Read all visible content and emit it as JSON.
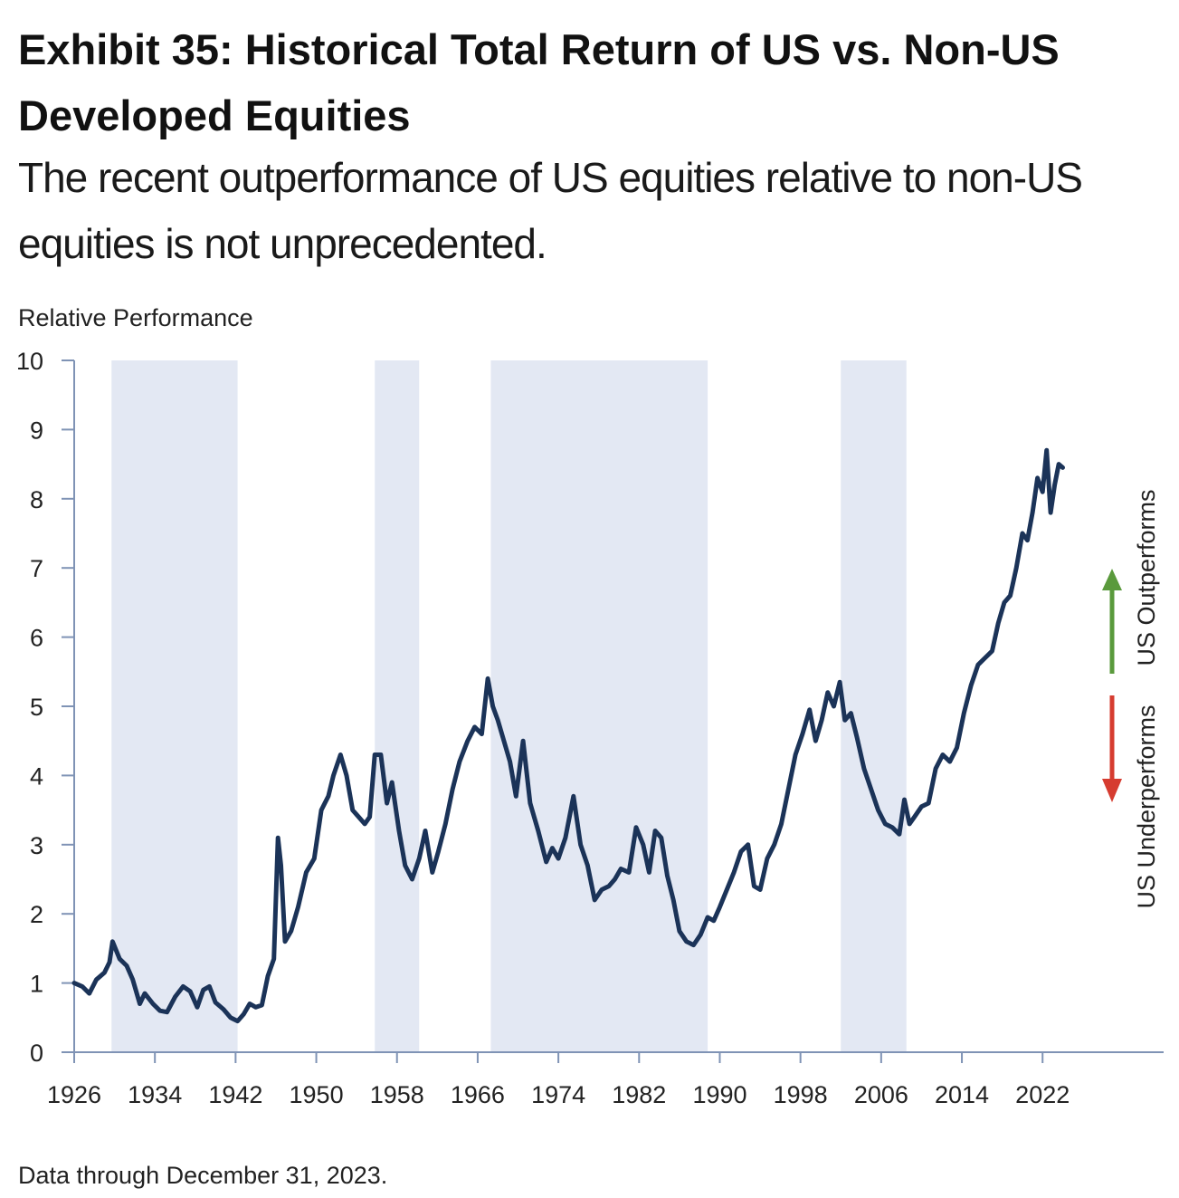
{
  "header": {
    "title": "Exhibit 35: Historical Total Return of US vs. Non-US Developed Equities",
    "subtitle": "The recent outperformance of US equities relative to non-US equities is not unprecedented."
  },
  "footer": {
    "note": "Data through December 31, 2023."
  },
  "annotations": {
    "outperforms": "US Outperforms",
    "underperforms": "US Underperforms",
    "outperforms_color": "#5a9a3c",
    "underperforms_color": "#d63c30"
  },
  "colors": {
    "line": "#1b3358",
    "shade": "#e3e8f3",
    "axis": "#7f93b5"
  },
  "chart_data": {
    "type": "line",
    "title": "Exhibit 35: Historical Total Return of US vs. Non-US Developed Equities",
    "subtitle": "The recent outperformance of US equities relative to non-US equities is not unprecedented.",
    "xlabel": "",
    "ylabel": "Relative Performance",
    "xlim": [
      1926,
      2034
    ],
    "ylim": [
      0,
      10
    ],
    "x_ticks": [
      1926,
      1934,
      1942,
      1950,
      1958,
      1966,
      1974,
      1982,
      1990,
      1998,
      2006,
      2014,
      2022
    ],
    "y_ticks": [
      0,
      1,
      2,
      3,
      4,
      5,
      6,
      7,
      8,
      9,
      10
    ],
    "shaded_periods": [
      [
        1929.7,
        1942.2
      ],
      [
        1955.8,
        1960.2
      ],
      [
        1967.3,
        1988.8
      ],
      [
        2002.0,
        2008.5
      ]
    ],
    "series": [
      {
        "name": "US vs. Non-US Developed Equities Relative Performance",
        "x": [
          1926,
          1926.8,
          1927.5,
          1928.2,
          1929,
          1929.5,
          1929.8,
          1930.5,
          1931.2,
          1931.8,
          1932.5,
          1933,
          1933.8,
          1934.5,
          1935.2,
          1936,
          1936.8,
          1937.5,
          1938.2,
          1938.8,
          1939.4,
          1940,
          1940.8,
          1941.5,
          1942.2,
          1942.8,
          1943.4,
          1944,
          1944.6,
          1945.2,
          1945.8,
          1946.2,
          1946.5,
          1946.9,
          1947.5,
          1948.2,
          1949,
          1949.8,
          1950.5,
          1951.2,
          1951.7,
          1952.4,
          1953,
          1953.6,
          1954.2,
          1954.8,
          1955.3,
          1955.8,
          1956.4,
          1957,
          1957.5,
          1958.2,
          1958.8,
          1959.5,
          1960.2,
          1960.8,
          1961.5,
          1962.1,
          1962.8,
          1963.5,
          1964.2,
          1965,
          1965.7,
          1966.4,
          1967,
          1967.5,
          1968,
          1968.6,
          1969.2,
          1969.8,
          1970.5,
          1971.2,
          1972,
          1972.8,
          1973.4,
          1974,
          1974.7,
          1975.5,
          1976.2,
          1976.9,
          1977.6,
          1978.3,
          1979,
          1979.6,
          1980.2,
          1981,
          1981.7,
          1982.4,
          1983,
          1983.6,
          1984.2,
          1984.8,
          1985.4,
          1986,
          1986.7,
          1987.4,
          1988.1,
          1988.8,
          1989.4,
          1990,
          1990.7,
          1991.4,
          1992.1,
          1992.8,
          1993.4,
          1994,
          1994.7,
          1995.4,
          1996.1,
          1996.8,
          1997.5,
          1998.2,
          1998.9,
          1999.5,
          2000.1,
          2000.7,
          2001.3,
          2001.9,
          2002.4,
          2003,
          2003.6,
          2004.3,
          2005,
          2005.7,
          2006.4,
          2007.1,
          2007.8,
          2008.3,
          2008.8,
          2009.3,
          2010,
          2010.7,
          2011.4,
          2012.1,
          2012.8,
          2013.5,
          2014.2,
          2014.9,
          2015.6,
          2016.3,
          2017,
          2017.6,
          2018.2,
          2018.8,
          2019.4,
          2020,
          2020.5,
          2021,
          2021.5,
          2022,
          2022.4,
          2022.8,
          2023.2,
          2023.6,
          2024
        ],
        "y": [
          1.0,
          0.95,
          0.85,
          1.05,
          1.15,
          1.3,
          1.6,
          1.35,
          1.25,
          1.05,
          0.7,
          0.85,
          0.7,
          0.6,
          0.58,
          0.8,
          0.95,
          0.88,
          0.65,
          0.9,
          0.95,
          0.72,
          0.62,
          0.5,
          0.45,
          0.55,
          0.7,
          0.65,
          0.68,
          1.1,
          1.35,
          3.1,
          2.7,
          1.6,
          1.75,
          2.1,
          2.6,
          2.8,
          3.5,
          3.7,
          4.0,
          4.3,
          4.0,
          3.5,
          3.4,
          3.3,
          3.4,
          4.3,
          4.3,
          3.6,
          3.9,
          3.2,
          2.7,
          2.5,
          2.8,
          3.2,
          2.6,
          2.9,
          3.3,
          3.8,
          4.2,
          4.5,
          4.7,
          4.6,
          5.4,
          5.0,
          4.8,
          4.5,
          4.2,
          3.7,
          4.5,
          3.6,
          3.2,
          2.75,
          2.95,
          2.8,
          3.1,
          3.7,
          3.0,
          2.7,
          2.2,
          2.35,
          2.4,
          2.5,
          2.65,
          2.6,
          3.25,
          3.0,
          2.6,
          3.2,
          3.1,
          2.55,
          2.2,
          1.75,
          1.6,
          1.55,
          1.7,
          1.95,
          1.9,
          2.1,
          2.35,
          2.6,
          2.9,
          3.0,
          2.4,
          2.35,
          2.8,
          3.0,
          3.3,
          3.8,
          4.3,
          4.6,
          4.95,
          4.5,
          4.8,
          5.2,
          5.0,
          5.35,
          4.8,
          4.9,
          4.55,
          4.1,
          3.8,
          3.5,
          3.3,
          3.25,
          3.15,
          3.65,
          3.3,
          3.4,
          3.55,
          3.6,
          4.1,
          4.3,
          4.2,
          4.4,
          4.9,
          5.3,
          5.6,
          5.7,
          5.8,
          6.2,
          6.5,
          6.6,
          7.0,
          7.5,
          7.4,
          7.8,
          8.3,
          8.1,
          8.7,
          7.8,
          8.2,
          8.5,
          8.45
        ]
      }
    ]
  }
}
